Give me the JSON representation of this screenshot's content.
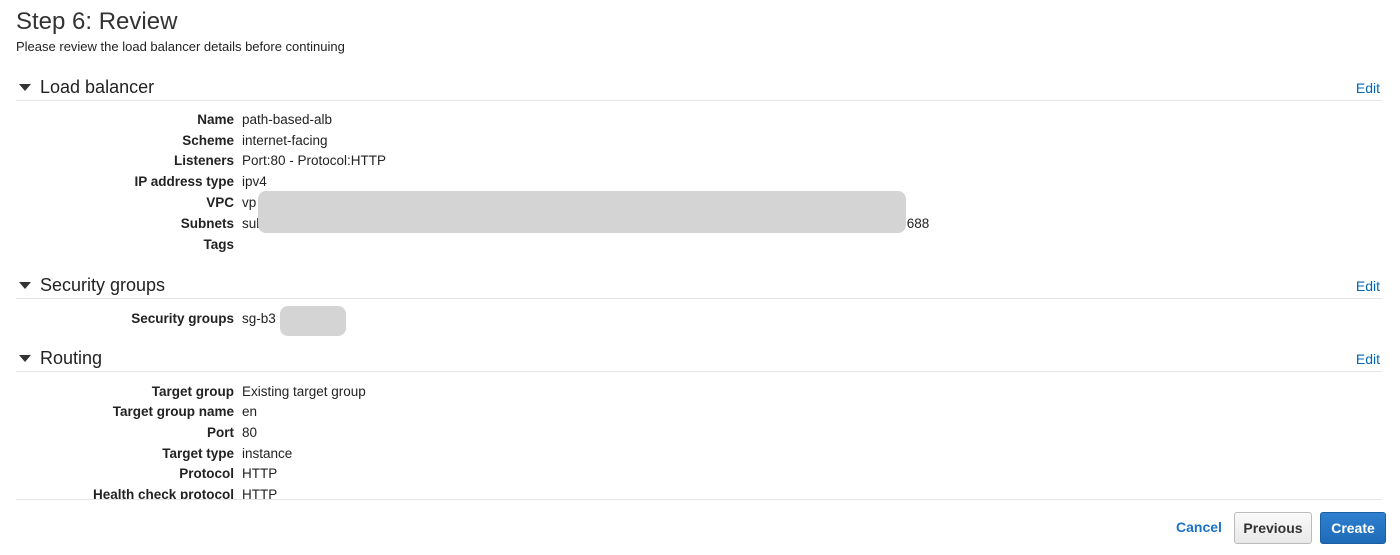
{
  "header": {
    "title": "Step 6: Review",
    "subtitle": "Please review the load balancer details before continuing"
  },
  "sections": {
    "load_balancer": {
      "title": "Load balancer",
      "edit": "Edit",
      "rows": [
        {
          "label": "Name",
          "value": "path-based-alb"
        },
        {
          "label": "Scheme",
          "value": "internet-facing"
        },
        {
          "label": "Listeners",
          "value": "Port:80 - Protocol:HTTP"
        },
        {
          "label": "IP address type",
          "value": "ipv4"
        },
        {
          "label": "VPC",
          "value": "vp"
        },
        {
          "label": "Subnets",
          "value": "sul",
          "value_suffix": ".688"
        },
        {
          "label": "Tags",
          "value": ""
        }
      ]
    },
    "security_groups": {
      "title": "Security groups",
      "edit": "Edit",
      "rows": [
        {
          "label": "Security groups",
          "value": "sg-b3"
        }
      ]
    },
    "routing": {
      "title": "Routing",
      "edit": "Edit",
      "rows": [
        {
          "label": "Target group",
          "value": "Existing target group"
        },
        {
          "label": "Target group name",
          "value": "en"
        },
        {
          "label": "Port",
          "value": "80"
        },
        {
          "label": "Target type",
          "value": "instance"
        },
        {
          "label": "Protocol",
          "value": "HTTP"
        },
        {
          "label": "Health check protocol",
          "value": "HTTP"
        }
      ]
    }
  },
  "footer": {
    "cancel": "Cancel",
    "previous": "Previous",
    "create": "Create"
  }
}
